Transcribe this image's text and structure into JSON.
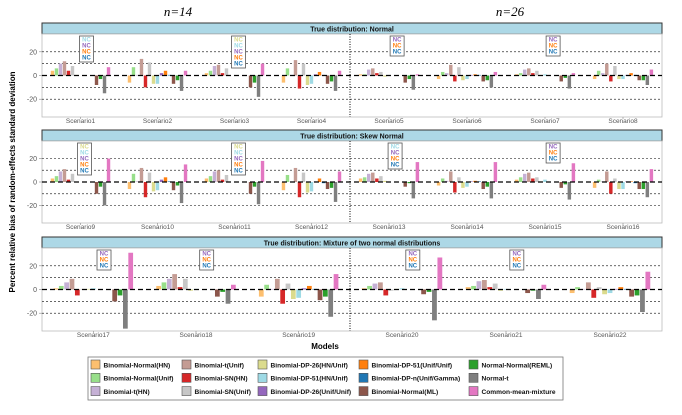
{
  "chart_data": {
    "type": "bar",
    "ylabel": "Percent relative bias of random-effects standard deviation",
    "xlabel": "Models",
    "column_titles": [
      "n=14",
      "n=26"
    ],
    "ylim": [
      -35,
      35
    ],
    "yticks": [
      -20,
      0,
      20
    ],
    "gridlines": [
      -20,
      -10,
      10,
      20
    ],
    "na_label": "NC",
    "legend_position": "bottom",
    "models": [
      {
        "name": "Binomial-Normal(HN)",
        "color": "#FDBF6F"
      },
      {
        "name": "Binomial-Normal(Unif)",
        "color": "#98DF8A"
      },
      {
        "name": "Binomial-t(HN)",
        "color": "#C5B0D5"
      },
      {
        "name": "Binomial-t(Unif)",
        "color": "#C49C94"
      },
      {
        "name": "Binomial-SN(HN)",
        "color": "#D62728"
      },
      {
        "name": "Binomial-SN(Unif)",
        "color": "#C7C7C7"
      },
      {
        "name": "Binomial-DP-26(HN/Unif)",
        "color": "#DBDB8D"
      },
      {
        "name": "Binomial-DP-51(HN/Unif)",
        "color": "#9EDAE5"
      },
      {
        "name": "Binomial-DP-26(Unif/Unif)",
        "color": "#9467BD"
      },
      {
        "name": "Binomial-DP-51(Unif/Unif)",
        "color": "#FF7F0E"
      },
      {
        "name": "Binomial-DP-n(Unif/Gamma)",
        "color": "#1F77B4"
      },
      {
        "name": "Binomial-Normal(ML)",
        "color": "#8C564B"
      },
      {
        "name": "Normal-Normal(REML)",
        "color": "#2CA02C"
      },
      {
        "name": "Normal-t",
        "color": "#7F7F7F"
      },
      {
        "name": "Common-mean-mixture",
        "color": "#E377C2"
      }
    ],
    "panels": [
      {
        "title": "True distribution: Normal",
        "scenarios": [
          {
            "name": "Scenario1",
            "n": 14,
            "values": [
              4,
              6,
              10,
              12,
              4,
              8,
              0.5,
              null,
              null,
              null,
              null,
              -8,
              -3,
              -15,
              7
            ]
          },
          {
            "name": "Scenario2",
            "n": 14,
            "values": [
              -6,
              7,
              0.5,
              14,
              -10,
              11,
              -7,
              -7,
              2,
              4,
              0.5,
              -7,
              -4,
              -13,
              4
            ]
          },
          {
            "name": "Scenario3",
            "n": 14,
            "values": [
              2,
              4,
              8,
              9,
              2,
              6,
              null,
              null,
              null,
              null,
              null,
              -10,
              -6,
              -18,
              10
            ]
          },
          {
            "name": "Scenario4",
            "n": 14,
            "values": [
              -6,
              6,
              0.5,
              13,
              -11,
              10,
              -8,
              -7,
              1,
              3,
              0.5,
              -7,
              -5,
              -13,
              4
            ]
          },
          {
            "name": "Scenario5",
            "n": 26,
            "values": [
              1,
              1,
              5,
              6,
              2,
              3,
              -1,
              0.5,
              null,
              null,
              null,
              -6,
              -3,
              -12,
              1
            ]
          },
          {
            "name": "Scenario6",
            "n": 26,
            "values": [
              -3,
              3,
              2,
              9,
              -5,
              7,
              -4,
              -3,
              0.5,
              1,
              0.5,
              -5,
              -4,
              -10,
              3
            ]
          },
          {
            "name": "Scenario7",
            "n": 26,
            "values": [
              1,
              2,
              5,
              6,
              2,
              4,
              0.5,
              1,
              null,
              null,
              null,
              -5,
              -2,
              -11,
              2
            ]
          },
          {
            "name": "Scenario8",
            "n": 26,
            "values": [
              -3,
              4,
              2,
              10,
              -5,
              8,
              -3,
              -3,
              0.5,
              2,
              0.5,
              -4,
              -4,
              -8,
              5
            ]
          }
        ]
      },
      {
        "title": "True distribution: Skew Normal",
        "scenarios": [
          {
            "name": "Scenario9",
            "n": 14,
            "values": [
              3,
              5,
              9,
              11,
              2,
              7,
              null,
              null,
              null,
              null,
              null,
              -10,
              -4,
              -20,
              20
            ]
          },
          {
            "name": "Scenario10",
            "n": 14,
            "values": [
              -6,
              7,
              0.5,
              12,
              -13,
              8,
              -8,
              -7,
              2,
              4,
              0.5,
              -7,
              -3,
              -18,
              15
            ]
          },
          {
            "name": "Scenario11",
            "n": 14,
            "values": [
              3,
              5,
              9,
              10,
              2,
              6,
              null,
              null,
              null,
              null,
              null,
              -10,
              -4,
              -19,
              18
            ]
          },
          {
            "name": "Scenario12",
            "n": 14,
            "values": [
              -7,
              6,
              0.5,
              12,
              -13,
              8,
              -9,
              -8,
              0.5,
              3,
              -1,
              -6,
              -5,
              -17,
              9
            ]
          },
          {
            "name": "Scenario13",
            "n": 26,
            "values": [
              3,
              4,
              7,
              8,
              3,
              5,
              1,
              null,
              null,
              null,
              null,
              -4,
              -1,
              -14,
              17
            ]
          },
          {
            "name": "Scenario14",
            "n": 26,
            "values": [
              -3,
              3,
              1,
              9,
              -9,
              4,
              -5,
              -4,
              0.5,
              1,
              0.5,
              -6,
              -4,
              -14,
              17
            ]
          },
          {
            "name": "Scenario15",
            "n": 26,
            "values": [
              2,
              4,
              7,
              8,
              3,
              4,
              0.5,
              2,
              null,
              null,
              null,
              -5,
              -2,
              -15,
              16
            ]
          },
          {
            "name": "Scenario16",
            "n": 26,
            "values": [
              -5,
              2,
              0.5,
              9,
              -10,
              3,
              -6,
              -6,
              0.5,
              0.5,
              -1,
              -6,
              -6,
              -13,
              11
            ]
          }
        ]
      },
      {
        "title": "True distribution: Mixture of two normal distributions",
        "scenarios": [
          {
            "name": "Scenario17",
            "n": 14,
            "values": [
              1,
              3,
              6,
              9,
              -5,
              0.5,
              0.5,
              1,
              null,
              null,
              null,
              -10,
              -5,
              -33,
              31
            ]
          },
          {
            "name": "Scenario18",
            "n": 14,
            "values": [
              3,
              6,
              9,
              13,
              2,
              9,
              -1,
              0.5,
              null,
              null,
              null,
              -6,
              -2,
              -12,
              4
            ]
          },
          {
            "name": "Scenario19",
            "n": 14,
            "values": [
              -6,
              4,
              0.5,
              9,
              -12,
              5,
              -8,
              -7,
              1,
              3,
              0.5,
              -9,
              -6,
              -23,
              13
            ]
          },
          {
            "name": "Scenario20",
            "n": 26,
            "values": [
              1,
              3,
              5,
              6,
              -5,
              -1,
              0.5,
              1,
              null,
              null,
              null,
              -4,
              -2,
              -26,
              27
            ]
          },
          {
            "name": "Scenario21",
            "n": 26,
            "values": [
              2,
              3,
              7,
              8,
              2,
              5,
              -1,
              0.5,
              null,
              null,
              null,
              -3,
              -1,
              -8,
              4
            ]
          },
          {
            "name": "Scenario22",
            "n": 26,
            "values": [
              -3,
              2,
              0.5,
              6,
              -7,
              2,
              -4,
              -3,
              0.5,
              2,
              0.5,
              -6,
              -5,
              -19,
              15
            ]
          }
        ]
      }
    ]
  }
}
